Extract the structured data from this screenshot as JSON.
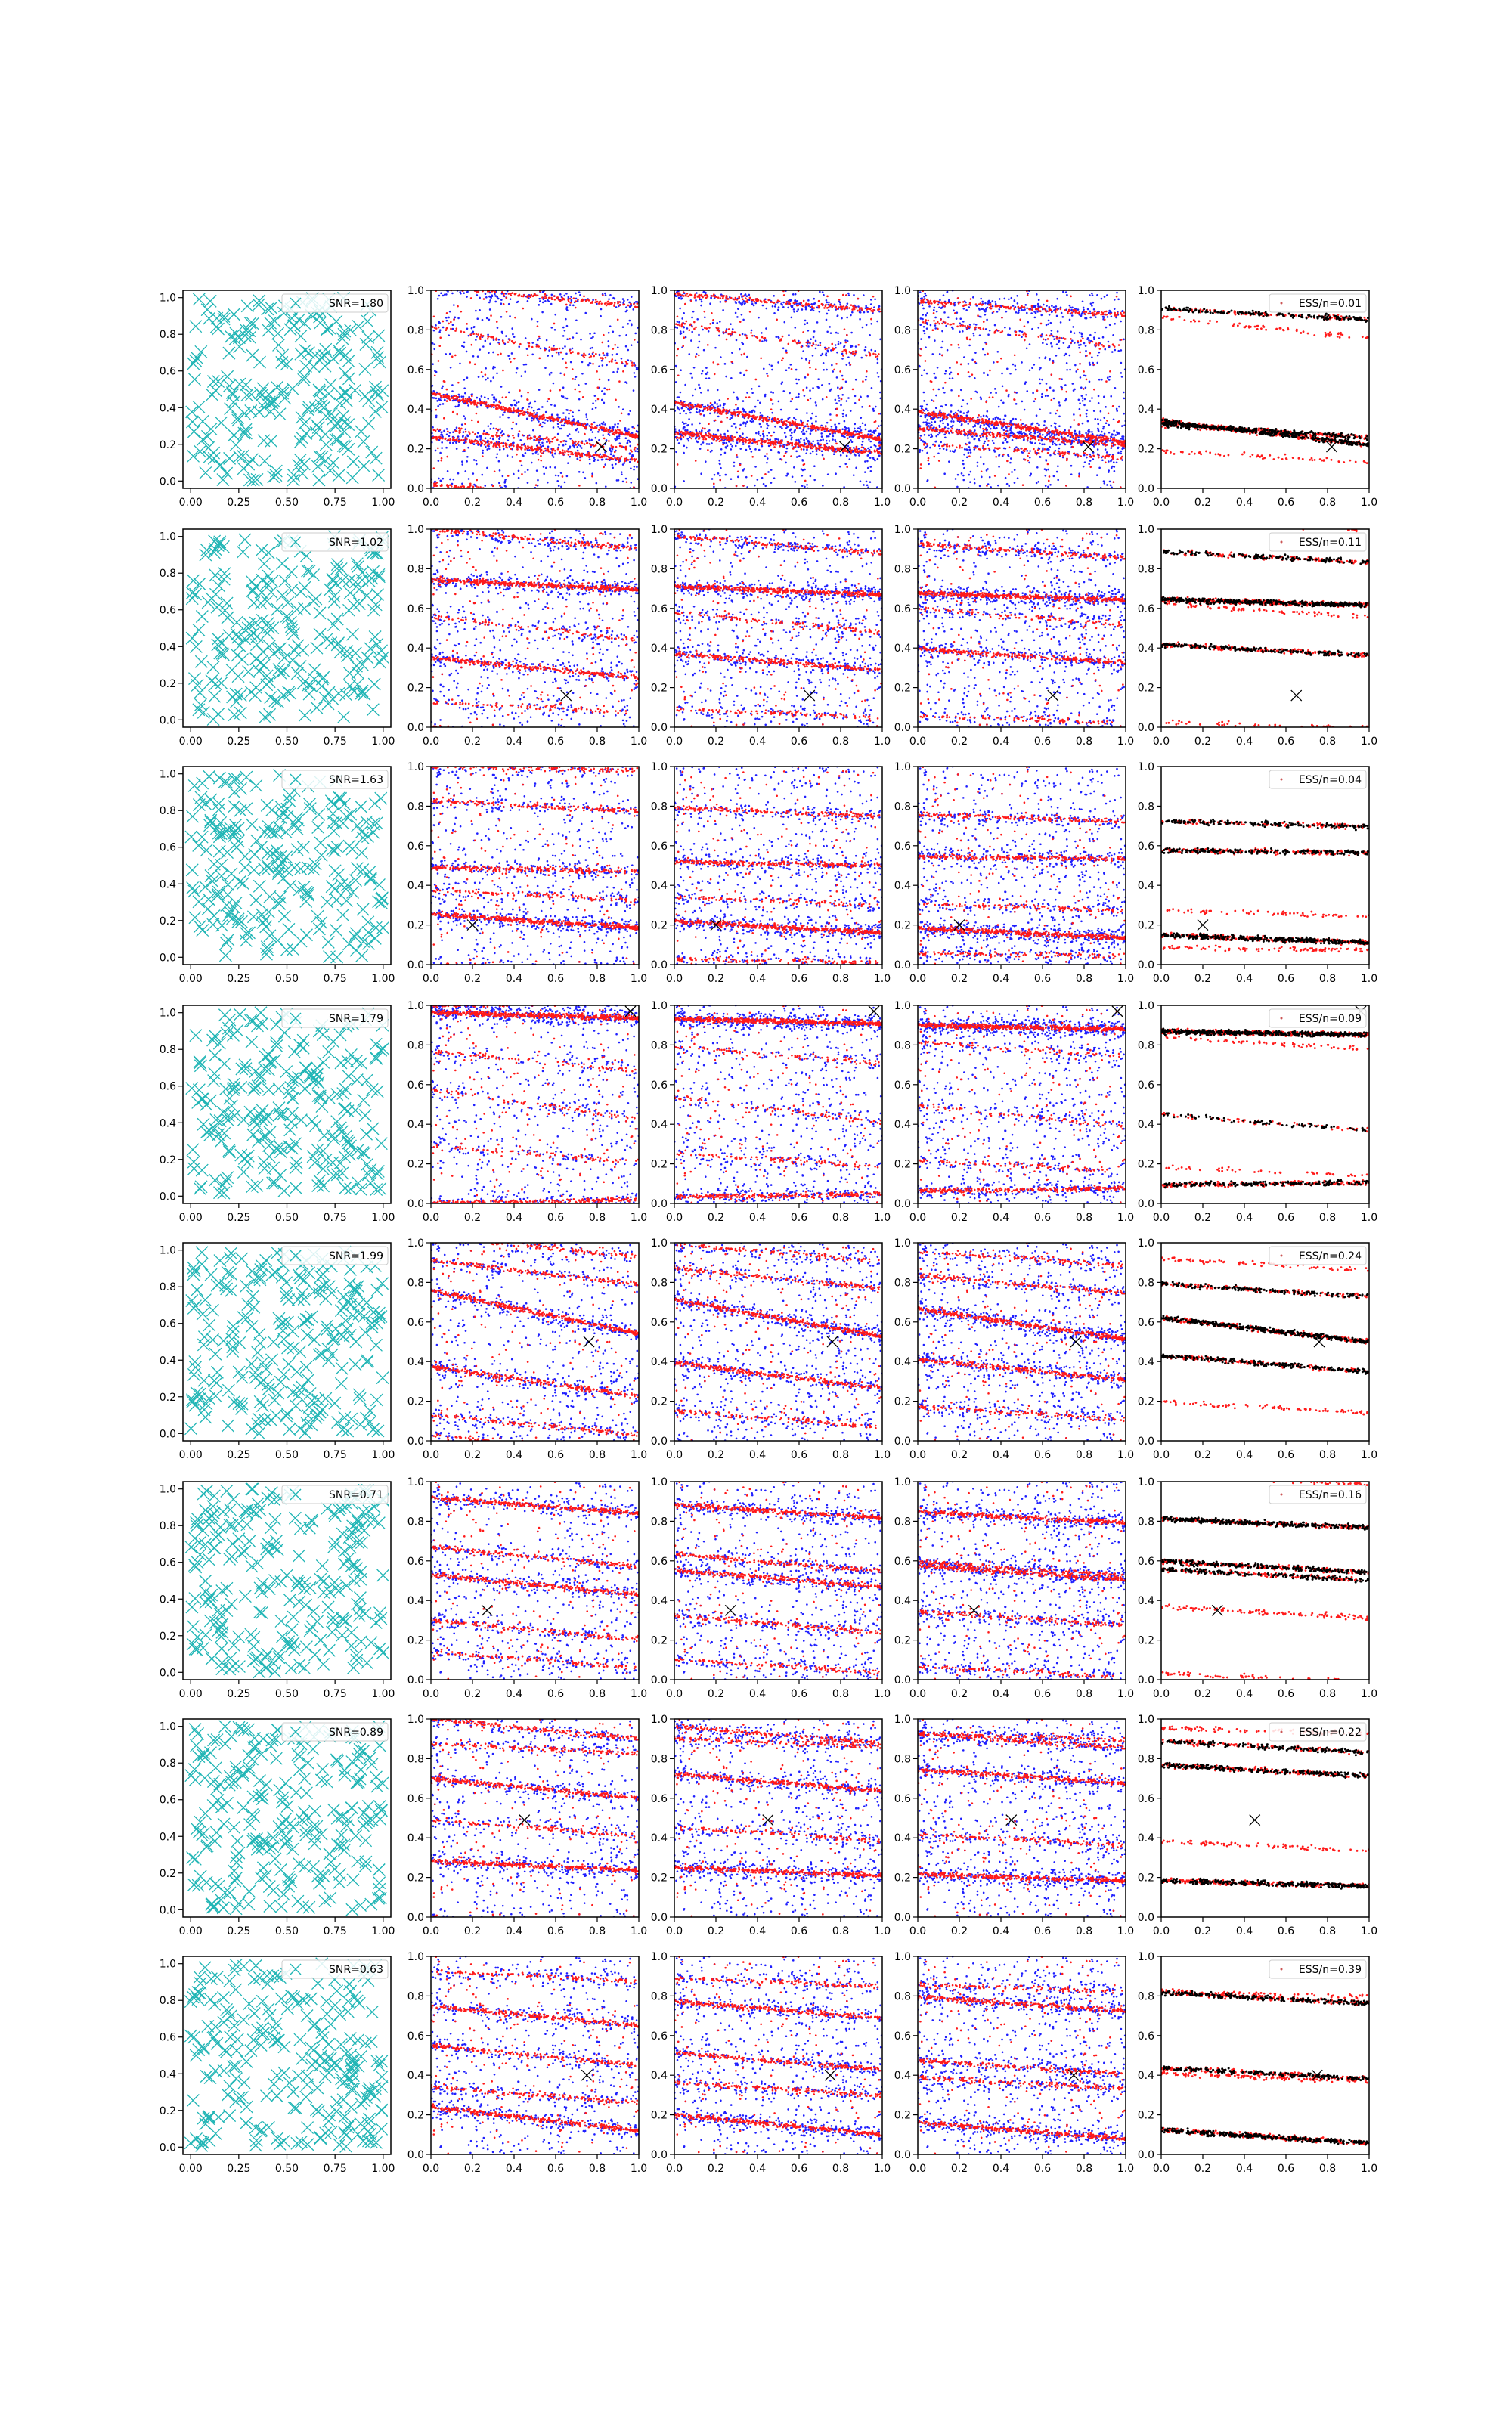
{
  "figure": {
    "rows": 8,
    "columns": 5,
    "background": "#ffffff",
    "colors": {
      "cyan_marker": "#1fb5b5",
      "blue_points": "#1f1fff",
      "red_points": "#ff1a1a",
      "black_points": "#000000",
      "true_marker": "#000000"
    }
  },
  "chart_data": {
    "type": "scatter",
    "grid": false,
    "column_kinds": [
      "data",
      "samples",
      "samples",
      "samples",
      "weighted"
    ],
    "col1_axes": {
      "xlim": [
        -0.04,
        1.04
      ],
      "ylim": [
        -0.04,
        1.04
      ],
      "xticks": [
        "0.00",
        "0.25",
        "0.50",
        "0.75",
        "1.00"
      ],
      "yticks": [
        "0.0",
        "0.2",
        "0.4",
        "0.6",
        "0.8",
        "1.0"
      ],
      "marker": "x",
      "points_per_panel": 250
    },
    "other_axes": {
      "xlim": [
        0,
        1
      ],
      "ylim": [
        0,
        1
      ],
      "xticks": [
        "0.0",
        "0.2",
        "0.4",
        "0.6",
        "0.8",
        "1.0"
      ],
      "yticks": [
        "0.0",
        "0.2",
        "0.4",
        "0.6",
        "0.8",
        "1.0"
      ]
    },
    "legend_placement": "upper right",
    "rows": [
      {
        "snr": "SNR=1.80",
        "ess": "ESS/n=0.01",
        "true_point": [
          0.82,
          0.21
        ],
        "bands": [
          [
            0.37,
            -0.22,
            1.0
          ],
          [
            0.2,
            -0.12,
            0.7
          ],
          [
            0.97,
            -0.1,
            0.5
          ],
          [
            0.72,
            -0.2,
            0.3
          ],
          [
            0.25,
            -0.1,
            0.25
          ]
        ]
      },
      {
        "snr": "SNR=1.02",
        "ess": "ESS/n=0.11",
        "true_point": [
          0.65,
          0.16
        ],
        "bands": [
          [
            0.72,
            -0.05,
            1.0
          ],
          [
            0.3,
            -0.1,
            0.6
          ],
          [
            0.95,
            -0.1,
            0.4
          ],
          [
            0.5,
            -0.12,
            0.3
          ],
          [
            0.1,
            -0.05,
            0.2
          ]
        ]
      },
      {
        "snr": "SNR=1.63",
        "ess": "ESS/n=0.04",
        "true_point": [
          0.2,
          0.2
        ],
        "bands": [
          [
            0.22,
            -0.07,
            1.0
          ],
          [
            0.48,
            -0.02,
            0.6
          ],
          [
            0.8,
            -0.05,
            0.45
          ],
          [
            0.99,
            -0.02,
            0.35
          ],
          [
            0.35,
            -0.05,
            0.25
          ]
        ]
      },
      {
        "snr": "SNR=1.79",
        "ess": "ESS/n=0.09",
        "true_point": [
          0.96,
          0.97
        ],
        "bands": [
          [
            0.95,
            -0.03,
            1.0
          ],
          [
            0.01,
            0.02,
            0.5
          ],
          [
            0.5,
            -0.15,
            0.15
          ],
          [
            0.72,
            -0.1,
            0.2
          ],
          [
            0.25,
            -0.08,
            0.15
          ]
        ]
      },
      {
        "snr": "SNR=1.99",
        "ess": "ESS/n=0.24",
        "true_point": [
          0.76,
          0.5
        ],
        "bands": [
          [
            0.65,
            -0.22,
            1.0
          ],
          [
            0.3,
            -0.15,
            0.7
          ],
          [
            0.85,
            -0.12,
            0.5
          ],
          [
            0.08,
            -0.1,
            0.4
          ],
          [
            0.98,
            -0.1,
            0.3
          ]
        ]
      },
      {
        "snr": "SNR=0.71",
        "ess": "ESS/n=0.16",
        "true_point": [
          0.27,
          0.35
        ],
        "bands": [
          [
            0.88,
            -0.08,
            1.0
          ],
          [
            0.48,
            -0.1,
            0.8
          ],
          [
            0.62,
            -0.1,
            0.6
          ],
          [
            0.25,
            -0.1,
            0.5
          ],
          [
            0.1,
            -0.08,
            0.4
          ]
        ]
      },
      {
        "snr": "SNR=0.89",
        "ess": "ESS/n=0.22",
        "true_point": [
          0.45,
          0.49
        ],
        "bands": [
          [
            0.26,
            -0.05,
            1.0
          ],
          [
            0.65,
            -0.1,
            0.8
          ],
          [
            0.95,
            -0.1,
            0.6
          ],
          [
            0.85,
            -0.05,
            0.45
          ],
          [
            0.45,
            -0.08,
            0.35
          ]
        ]
      },
      {
        "snr": "SNR=0.63",
        "ess": "ESS/n=0.39",
        "true_point": [
          0.75,
          0.4
        ],
        "bands": [
          [
            0.18,
            -0.12,
            1.0
          ],
          [
            0.7,
            -0.1,
            0.8
          ],
          [
            0.5,
            -0.1,
            0.7
          ],
          [
            0.3,
            -0.08,
            0.55
          ],
          [
            0.9,
            -0.05,
            0.4
          ]
        ]
      }
    ]
  }
}
